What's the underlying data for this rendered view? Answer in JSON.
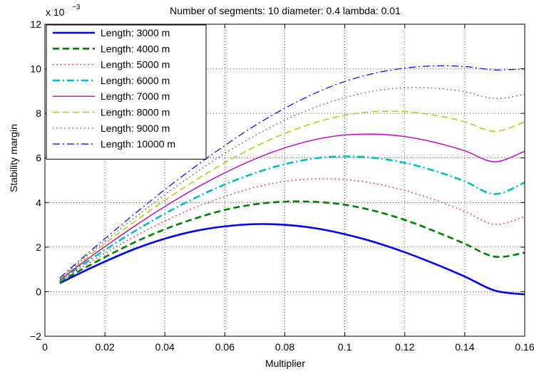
{
  "chart_data": {
    "type": "line",
    "title": "Number of segments: 10 diameter: 0.4 lambda: 0.01",
    "xlabel": "Multiplier",
    "ylabel": "Stability margin",
    "y_exponent_base": "x 10",
    "y_exponent_power": "−3",
    "xlim": [
      0,
      0.16
    ],
    "ylim": [
      -2,
      12
    ],
    "xticks": [
      0,
      0.02,
      0.04,
      0.06,
      0.08,
      0.1,
      0.12,
      0.14,
      0.16
    ],
    "xtick_labels": [
      "0",
      "0.02",
      "0.04",
      "0.06",
      "0.08",
      "0.1",
      "0.12",
      "0.14",
      "0.16"
    ],
    "yticks": [
      -2,
      0,
      2,
      4,
      6,
      8,
      10,
      12
    ],
    "ytick_labels": [
      "−2",
      "0",
      "2",
      "4",
      "6",
      "8",
      "10",
      "12"
    ],
    "grid": true,
    "legend_position": "top-left",
    "x": [
      0.005,
      0.01,
      0.02,
      0.03,
      0.04,
      0.05,
      0.06,
      0.07,
      0.08,
      0.09,
      0.1,
      0.11,
      0.12,
      0.13,
      0.14,
      0.15,
      0.16
    ],
    "series": [
      {
        "name": "Length: 3000 m",
        "color": "#0000ff",
        "dash": "solid",
        "width": 2.6,
        "values": [
          0.38,
          0.72,
          1.35,
          1.92,
          2.38,
          2.72,
          2.93,
          3.03,
          3.0,
          2.85,
          2.58,
          2.22,
          1.77,
          1.25,
          0.68,
          0.05,
          -0.12
        ]
      },
      {
        "name": "Length: 4000 m",
        "color": "#008000",
        "dash": "long",
        "width": 2.6,
        "values": [
          0.42,
          0.82,
          1.55,
          2.22,
          2.8,
          3.28,
          3.67,
          3.92,
          4.04,
          4.03,
          3.9,
          3.62,
          3.22,
          2.71,
          2.15,
          1.57,
          1.75
        ]
      },
      {
        "name": "Length: 5000 m",
        "color": "#ff0000",
        "dash": "dot",
        "width": 1.4,
        "values": [
          0.45,
          0.9,
          1.72,
          2.48,
          3.17,
          3.77,
          4.27,
          4.68,
          4.95,
          5.06,
          5.03,
          4.85,
          4.54,
          4.12,
          3.6,
          3.02,
          3.37
        ]
      },
      {
        "name": "Length: 6000 m",
        "color": "#00bfbf",
        "dash": "dashdot",
        "width": 2.6,
        "values": [
          0.48,
          0.97,
          1.87,
          2.72,
          3.5,
          4.2,
          4.81,
          5.32,
          5.72,
          5.98,
          6.07,
          6.0,
          5.78,
          5.42,
          4.95,
          4.38,
          4.9
        ]
      },
      {
        "name": "Length: 7000 m",
        "color": "#bf00bf",
        "dash": "solid",
        "width": 1.4,
        "values": [
          0.52,
          1.04,
          2.02,
          2.95,
          3.82,
          4.62,
          5.33,
          5.95,
          6.45,
          6.82,
          7.03,
          7.07,
          6.96,
          6.7,
          6.32,
          5.83,
          6.3
        ]
      },
      {
        "name": "Length: 8000 m",
        "color": "#bfbf00",
        "dash": "long",
        "width": 1.4,
        "values": [
          0.55,
          1.1,
          2.15,
          3.15,
          4.1,
          4.98,
          5.79,
          6.5,
          7.1,
          7.58,
          7.92,
          8.08,
          8.08,
          7.92,
          7.62,
          7.19,
          7.62
        ]
      },
      {
        "name": "Length: 9000 m",
        "color": "#404040",
        "dash": "dot",
        "width": 1.2,
        "values": [
          0.58,
          1.16,
          2.27,
          3.33,
          4.35,
          5.31,
          6.2,
          7.0,
          7.7,
          8.27,
          8.71,
          9.01,
          9.15,
          9.13,
          8.97,
          8.67,
          8.85
        ]
      },
      {
        "name": "Length: 10000 m",
        "color": "#0000ff",
        "dash": "dashdot",
        "width": 1.2,
        "values": [
          0.62,
          1.22,
          2.38,
          3.5,
          4.58,
          5.6,
          6.56,
          7.45,
          8.23,
          8.9,
          9.43,
          9.8,
          10.03,
          10.13,
          10.1,
          9.95,
          10.0
        ]
      }
    ]
  }
}
